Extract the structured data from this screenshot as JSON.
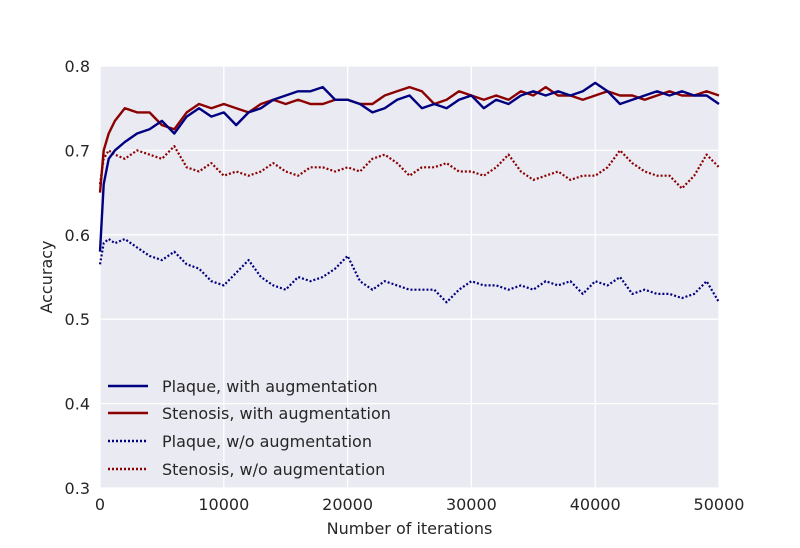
{
  "chart_data": {
    "type": "line",
    "title": "",
    "xlabel": "Number of iterations",
    "ylabel": "Accuracy",
    "xlim": [
      0,
      50000
    ],
    "ylim": [
      0.3,
      0.8
    ],
    "xticks": [
      0,
      10000,
      20000,
      30000,
      40000,
      50000
    ],
    "yticks": [
      0.3,
      0.4,
      0.5,
      0.6,
      0.7,
      0.8
    ],
    "xtick_labels": [
      "0",
      "10000",
      "20000",
      "30000",
      "40000",
      "50000"
    ],
    "ytick_labels": [
      "0.3",
      "0.4",
      "0.5",
      "0.6",
      "0.7",
      "0.8"
    ],
    "grid": true,
    "legend_position": "lower-left",
    "series": [
      {
        "name": "Plaque, with augmentation",
        "color": "#000080",
        "style": "solid",
        "x": [
          0,
          300,
          700,
          1200,
          2000,
          3000,
          4000,
          5000,
          6000,
          7000,
          8000,
          9000,
          10000,
          11000,
          12000,
          13000,
          14000,
          15000,
          16000,
          17000,
          18000,
          19000,
          20000,
          21000,
          22000,
          23000,
          24000,
          25000,
          26000,
          27000,
          28000,
          29000,
          30000,
          31000,
          32000,
          33000,
          34000,
          35000,
          36000,
          37000,
          38000,
          39000,
          40000,
          41000,
          42000,
          43000,
          44000,
          45000,
          46000,
          47000,
          48000,
          49000,
          50000
        ],
        "y": [
          0.58,
          0.66,
          0.69,
          0.7,
          0.71,
          0.72,
          0.725,
          0.735,
          0.72,
          0.74,
          0.75,
          0.74,
          0.745,
          0.73,
          0.745,
          0.75,
          0.76,
          0.765,
          0.77,
          0.77,
          0.775,
          0.76,
          0.76,
          0.755,
          0.745,
          0.75,
          0.76,
          0.765,
          0.75,
          0.755,
          0.75,
          0.76,
          0.765,
          0.75,
          0.76,
          0.755,
          0.765,
          0.77,
          0.765,
          0.77,
          0.765,
          0.77,
          0.78,
          0.77,
          0.755,
          0.76,
          0.765,
          0.77,
          0.765,
          0.77,
          0.765,
          0.765,
          0.755
        ]
      },
      {
        "name": "Stenosis, with augmentation",
        "color": "#8b0000",
        "style": "solid",
        "x": [
          0,
          300,
          700,
          1200,
          2000,
          3000,
          4000,
          5000,
          6000,
          7000,
          8000,
          9000,
          10000,
          11000,
          12000,
          13000,
          14000,
          15000,
          16000,
          17000,
          18000,
          19000,
          20000,
          21000,
          22000,
          23000,
          24000,
          25000,
          26000,
          27000,
          28000,
          29000,
          30000,
          31000,
          32000,
          33000,
          34000,
          35000,
          36000,
          37000,
          38000,
          39000,
          40000,
          41000,
          42000,
          43000,
          44000,
          45000,
          46000,
          47000,
          48000,
          49000,
          50000
        ],
        "y": [
          0.65,
          0.7,
          0.72,
          0.735,
          0.75,
          0.745,
          0.745,
          0.73,
          0.725,
          0.745,
          0.755,
          0.75,
          0.755,
          0.75,
          0.745,
          0.755,
          0.76,
          0.755,
          0.76,
          0.755,
          0.755,
          0.76,
          0.76,
          0.755,
          0.755,
          0.765,
          0.77,
          0.775,
          0.77,
          0.755,
          0.76,
          0.77,
          0.765,
          0.76,
          0.765,
          0.76,
          0.77,
          0.765,
          0.775,
          0.765,
          0.765,
          0.76,
          0.765,
          0.77,
          0.765,
          0.765,
          0.76,
          0.765,
          0.77,
          0.765,
          0.765,
          0.77,
          0.765
        ]
      },
      {
        "name": "Plaque, w/o augmentation",
        "color": "#000080",
        "style": "dotted",
        "x": [
          0,
          300,
          700,
          1200,
          2000,
          3000,
          4000,
          5000,
          6000,
          7000,
          8000,
          9000,
          10000,
          11000,
          12000,
          13000,
          14000,
          15000,
          16000,
          17000,
          18000,
          19000,
          20000,
          21000,
          22000,
          23000,
          24000,
          25000,
          26000,
          27000,
          28000,
          29000,
          30000,
          31000,
          32000,
          33000,
          34000,
          35000,
          36000,
          37000,
          38000,
          39000,
          40000,
          41000,
          42000,
          43000,
          44000,
          45000,
          46000,
          47000,
          48000,
          49000,
          50000
        ],
        "y": [
          0.565,
          0.59,
          0.595,
          0.59,
          0.595,
          0.585,
          0.575,
          0.57,
          0.58,
          0.565,
          0.56,
          0.545,
          0.54,
          0.555,
          0.57,
          0.55,
          0.54,
          0.535,
          0.55,
          0.545,
          0.55,
          0.56,
          0.575,
          0.545,
          0.535,
          0.545,
          0.54,
          0.535,
          0.535,
          0.535,
          0.52,
          0.535,
          0.545,
          0.54,
          0.54,
          0.535,
          0.54,
          0.535,
          0.545,
          0.54,
          0.545,
          0.53,
          0.545,
          0.54,
          0.55,
          0.53,
          0.535,
          0.53,
          0.53,
          0.525,
          0.53,
          0.545,
          0.52
        ]
      },
      {
        "name": "Stenosis, w/o augmentation",
        "color": "#8b0000",
        "style": "dotted",
        "x": [
          0,
          300,
          700,
          1200,
          2000,
          3000,
          4000,
          5000,
          6000,
          7000,
          8000,
          9000,
          10000,
          11000,
          12000,
          13000,
          14000,
          15000,
          16000,
          17000,
          18000,
          19000,
          20000,
          21000,
          22000,
          23000,
          24000,
          25000,
          26000,
          27000,
          28000,
          29000,
          30000,
          31000,
          32000,
          33000,
          34000,
          35000,
          36000,
          37000,
          38000,
          39000,
          40000,
          41000,
          42000,
          43000,
          44000,
          45000,
          46000,
          47000,
          48000,
          49000,
          50000
        ],
        "y": [
          0.66,
          0.69,
          0.7,
          0.695,
          0.69,
          0.7,
          0.695,
          0.69,
          0.705,
          0.68,
          0.675,
          0.685,
          0.67,
          0.675,
          0.67,
          0.675,
          0.685,
          0.675,
          0.67,
          0.68,
          0.68,
          0.675,
          0.68,
          0.675,
          0.69,
          0.695,
          0.685,
          0.67,
          0.68,
          0.68,
          0.685,
          0.675,
          0.675,
          0.67,
          0.68,
          0.695,
          0.675,
          0.665,
          0.67,
          0.675,
          0.665,
          0.67,
          0.67,
          0.68,
          0.7,
          0.685,
          0.675,
          0.67,
          0.67,
          0.655,
          0.67,
          0.695,
          0.68
        ]
      }
    ]
  }
}
